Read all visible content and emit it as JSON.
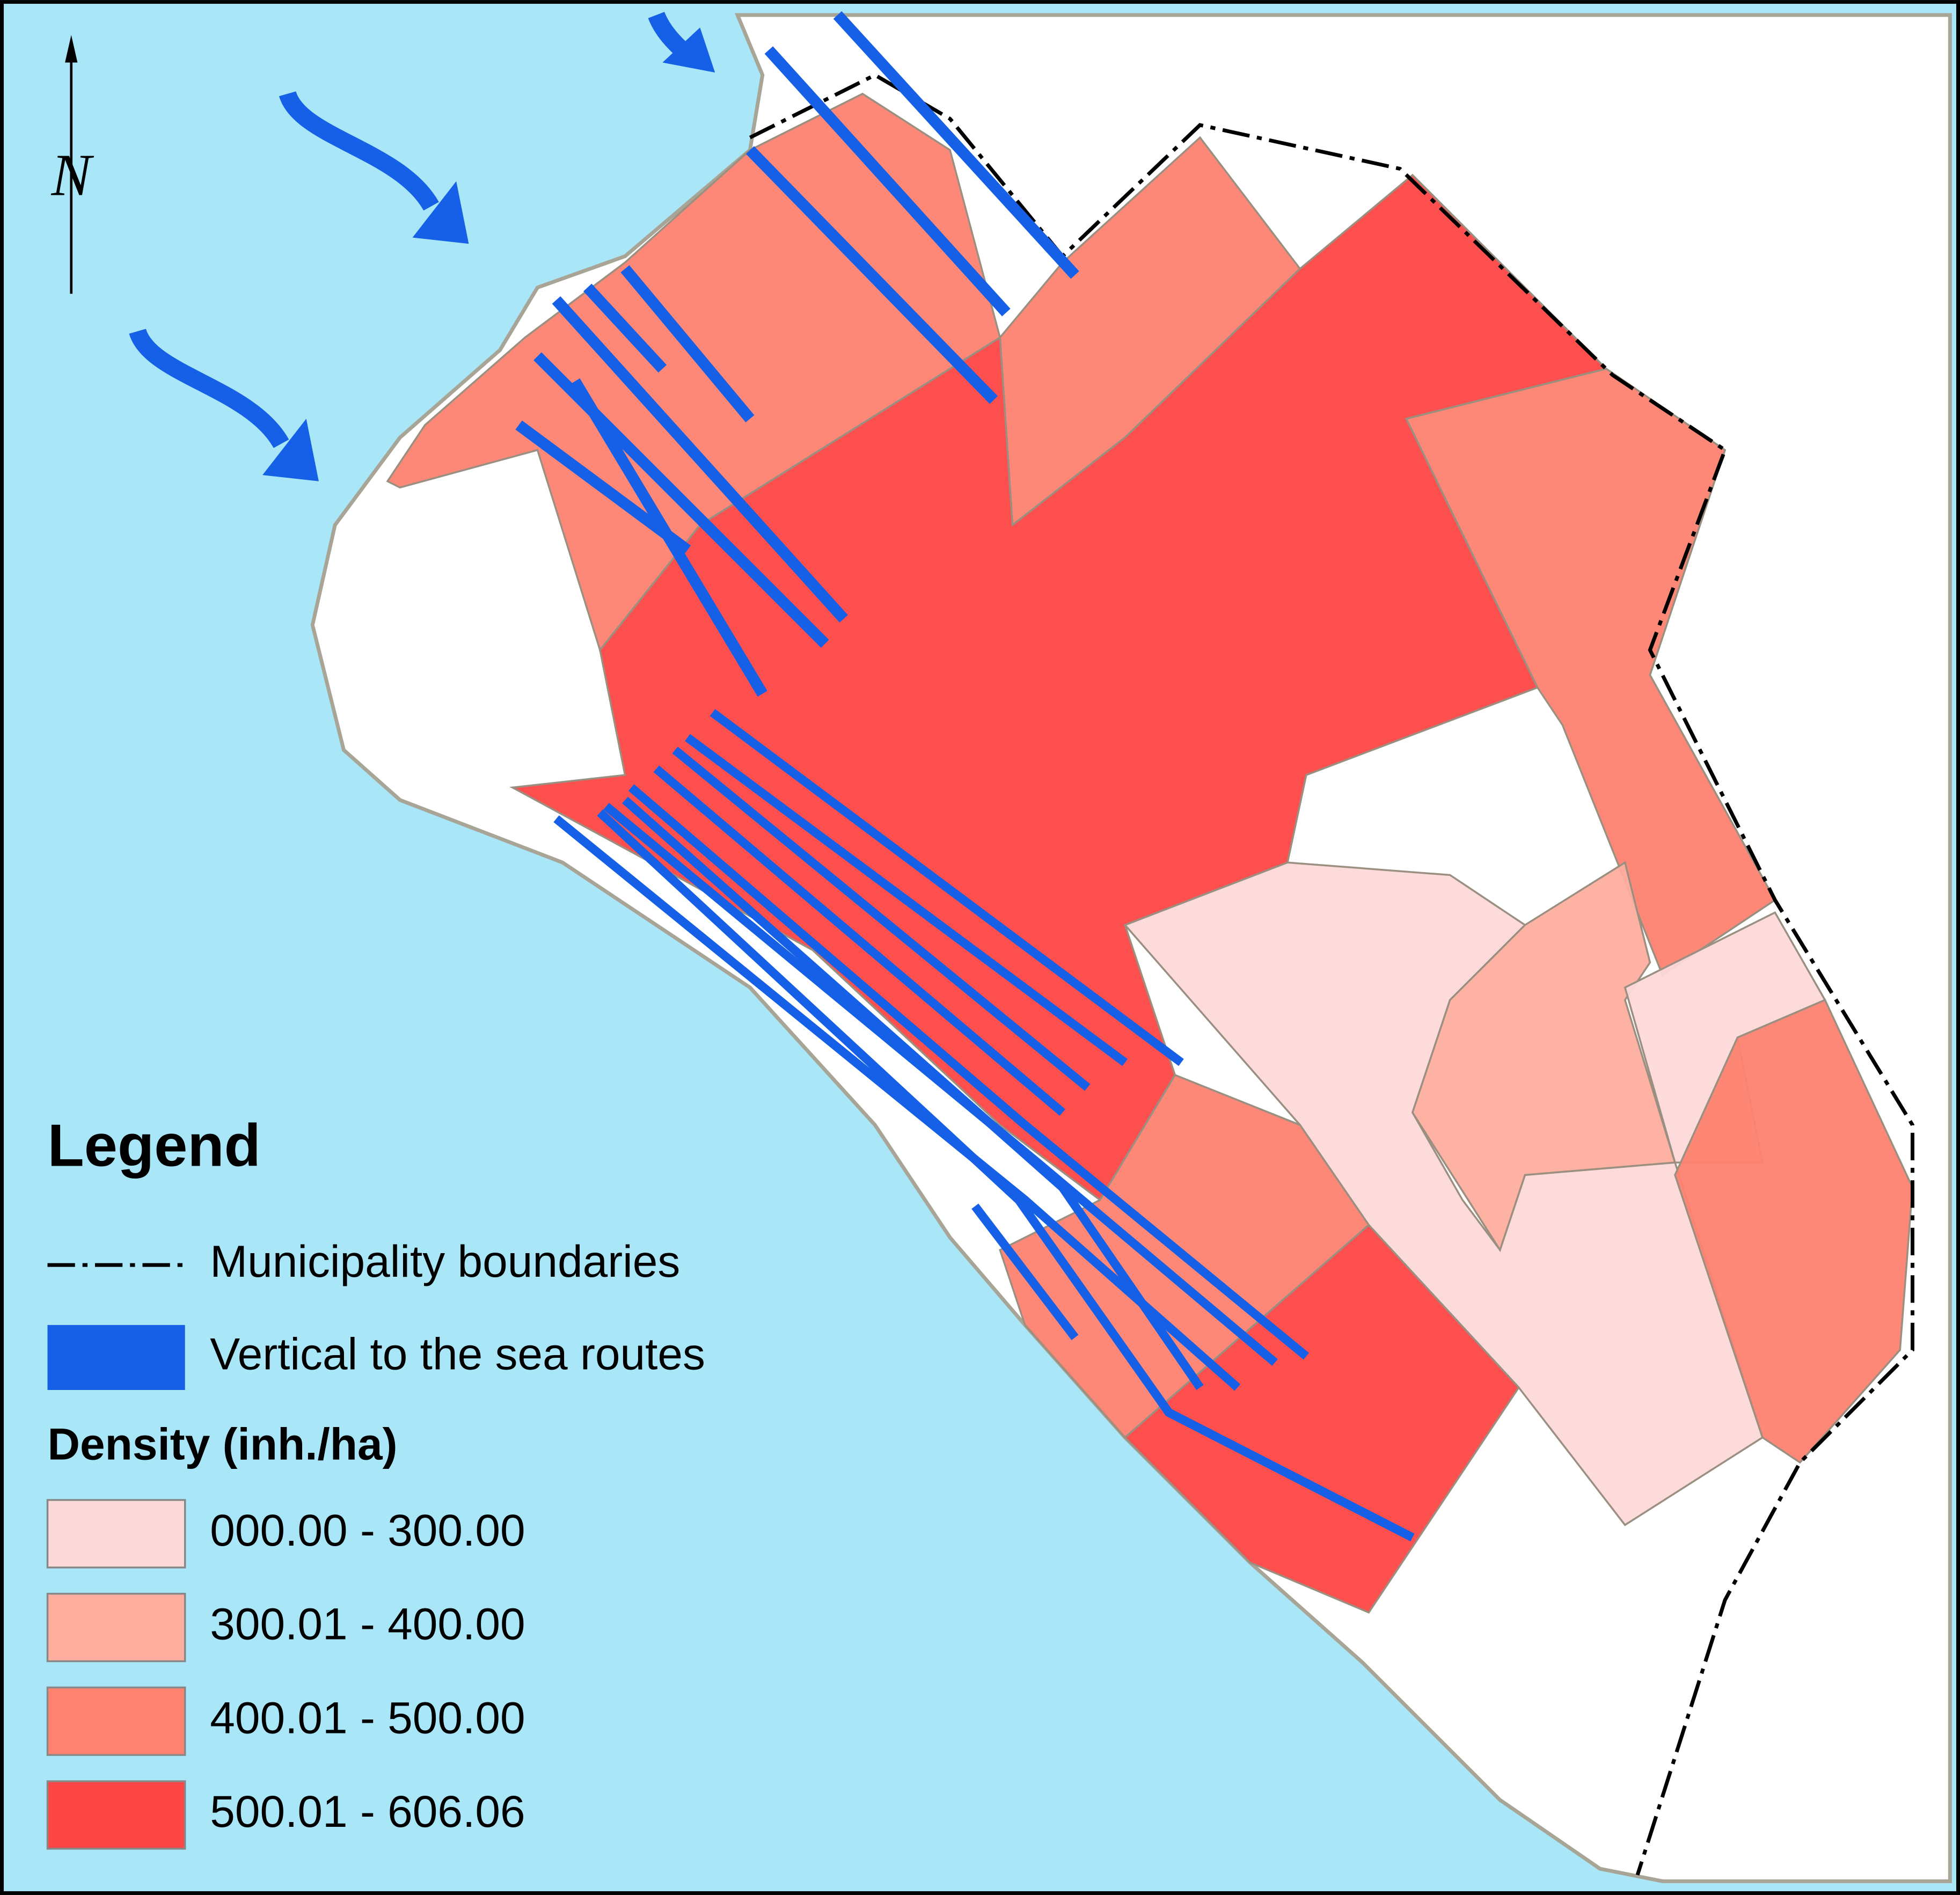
{
  "north_arrow": {
    "label": "N"
  },
  "legend": {
    "title": "Legend",
    "boundary": {
      "label": "Municipality boundaries"
    },
    "routes": {
      "label": "Vertical to the sea routes",
      "color": "#1560e6"
    },
    "density": {
      "title": "Density (inh./ha)",
      "classes": [
        {
          "label": "000.00 - 300.00",
          "color": "#fdd9d9"
        },
        {
          "label": "300.01 - 400.00",
          "color": "#fdae9f"
        },
        {
          "label": "400.01 - 500.00",
          "color": "#fe8270"
        },
        {
          "label": "500.01 - 606.06",
          "color": "#fe4646"
        }
      ]
    }
  }
}
